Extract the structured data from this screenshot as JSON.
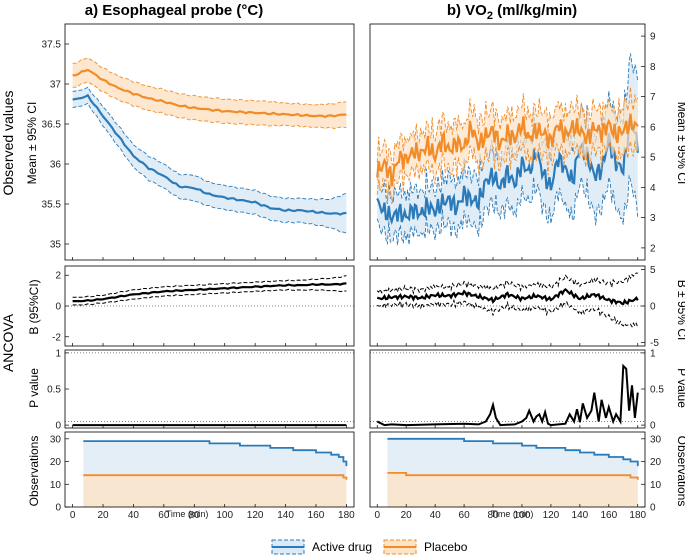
{
  "titles": {
    "left_prefix": "a) Esophageal probe (°C)",
    "right_prefix": "b) VO",
    "right_sub": "2",
    "right_suffix": " (ml/kg/min)"
  },
  "row_labels": {
    "observed": "Observed values",
    "ancova": "ANCOVA",
    "mean_ci": "Mean ± 95% CI",
    "b_ci_left": "B (95%CI)",
    "b_ci_right": "B ± 95% CI",
    "p_value": "P value",
    "observations": "Observations"
  },
  "x_axis_label": "Time (min)",
  "legend": {
    "active": "Active drug",
    "placebo": "Placebo"
  },
  "colors": {
    "active": "#2b7bba",
    "placebo": "#f28c28",
    "active_fill": "#dceaf5",
    "placebo_fill": "#fde3c6"
  },
  "chart_data": [
    {
      "type": "line",
      "panel": "a-observed",
      "x": [
        0,
        10,
        20,
        30,
        40,
        50,
        60,
        70,
        80,
        90,
        100,
        110,
        120,
        130,
        140,
        150,
        160,
        170,
        180
      ],
      "series": [
        {
          "name": "Active drug",
          "mean": [
            36.8,
            36.85,
            36.6,
            36.35,
            36.1,
            35.95,
            35.85,
            35.72,
            35.7,
            35.62,
            35.58,
            35.55,
            35.52,
            35.45,
            35.42,
            35.42,
            35.4,
            35.38,
            35.38
          ],
          "ci_half": [
            0.1,
            0.1,
            0.12,
            0.13,
            0.14,
            0.15,
            0.15,
            0.15,
            0.16,
            0.15,
            0.15,
            0.15,
            0.15,
            0.15,
            0.15,
            0.15,
            0.16,
            0.18,
            0.25
          ]
        },
        {
          "name": "Placebo",
          "mean": [
            37.1,
            37.18,
            37.05,
            36.95,
            36.88,
            36.82,
            36.78,
            36.73,
            36.7,
            36.68,
            36.66,
            36.65,
            36.64,
            36.63,
            36.62,
            36.61,
            36.6,
            36.6,
            36.62
          ],
          "ci_half": [
            0.15,
            0.15,
            0.15,
            0.15,
            0.15,
            0.15,
            0.15,
            0.15,
            0.15,
            0.15,
            0.15,
            0.15,
            0.15,
            0.15,
            0.14,
            0.14,
            0.14,
            0.15,
            0.16
          ]
        }
      ],
      "xlim": [
        -5,
        185
      ],
      "ylim": [
        34.8,
        37.75
      ],
      "yticks": [
        35,
        35.5,
        36,
        36.5,
        37,
        37.5
      ]
    },
    {
      "type": "line",
      "panel": "b-observed",
      "x": [
        0,
        5,
        10,
        15,
        20,
        25,
        30,
        35,
        40,
        45,
        50,
        55,
        60,
        65,
        70,
        75,
        80,
        85,
        90,
        95,
        100,
        105,
        110,
        115,
        120,
        125,
        130,
        135,
        140,
        145,
        150,
        155,
        160,
        165,
        170,
        175,
        180
      ],
      "series": [
        {
          "name": "Active drug",
          "mean": [
            3.5,
            3.2,
            3.0,
            3.2,
            3.0,
            3.3,
            3.1,
            3.4,
            3.2,
            3.5,
            3.6,
            3.3,
            3.8,
            3.6,
            3.5,
            4.2,
            4.4,
            4.0,
            4.5,
            4.1,
            4.8,
            4.5,
            5.2,
            4.4,
            4.0,
            5.0,
            4.6,
            4.2,
            5.4,
            5.0,
            4.4,
            4.6,
            5.6,
            4.8,
            4.6,
            6.3,
            5.4
          ],
          "ci_half": [
            0.7,
            0.7,
            0.7,
            0.7,
            0.7,
            0.7,
            0.7,
            0.7,
            0.7,
            0.7,
            0.8,
            0.8,
            0.8,
            0.8,
            0.9,
            0.9,
            0.9,
            0.9,
            1.0,
            1.0,
            1.0,
            1.0,
            1.1,
            1.1,
            1.1,
            1.1,
            1.2,
            1.2,
            1.2,
            1.2,
            1.3,
            1.3,
            1.4,
            1.5,
            1.7,
            2.0,
            2.2
          ]
        },
        {
          "name": "Placebo",
          "mean": [
            4.5,
            4.8,
            4.3,
            5.0,
            4.9,
            5.2,
            5.1,
            5.4,
            5.0,
            5.6,
            5.2,
            5.5,
            5.3,
            6.0,
            5.4,
            5.7,
            5.9,
            5.4,
            5.8,
            5.6,
            6.1,
            5.6,
            5.9,
            5.8,
            5.5,
            6.1,
            5.7,
            6.0,
            5.9,
            5.6,
            6.0,
            5.8,
            6.1,
            5.7,
            5.9,
            6.1,
            6.0
          ],
          "ci_half": [
            0.6,
            0.6,
            0.6,
            0.6,
            0.6,
            0.6,
            0.6,
            0.6,
            0.7,
            0.7,
            0.7,
            0.7,
            0.7,
            0.7,
            0.7,
            0.7,
            0.7,
            0.7,
            0.7,
            0.7,
            0.7,
            0.7,
            0.7,
            0.7,
            0.7,
            0.7,
            0.7,
            0.7,
            0.7,
            0.7,
            0.7,
            0.7,
            0.7,
            0.7,
            0.8,
            0.8,
            0.8
          ]
        }
      ],
      "xlim": [
        -5,
        185
      ],
      "ylim": [
        1.6,
        9.4
      ],
      "yticks": [
        2,
        3,
        4,
        5,
        6,
        7,
        8,
        9
      ]
    },
    {
      "type": "line",
      "panel": "a-ancova-B",
      "x": [
        0,
        10,
        20,
        30,
        40,
        50,
        60,
        70,
        80,
        90,
        100,
        110,
        120,
        130,
        140,
        150,
        160,
        170,
        180
      ],
      "values": [
        0.3,
        0.35,
        0.45,
        0.6,
        0.75,
        0.85,
        0.95,
        1.0,
        1.05,
        1.1,
        1.15,
        1.2,
        1.25,
        1.3,
        1.35,
        1.35,
        1.4,
        1.4,
        1.45
      ],
      "ci_half": [
        0.25,
        0.25,
        0.25,
        0.28,
        0.3,
        0.3,
        0.3,
        0.3,
        0.3,
        0.3,
        0.3,
        0.3,
        0.3,
        0.3,
        0.3,
        0.32,
        0.35,
        0.4,
        0.5
      ],
      "xlim": [
        -5,
        185
      ],
      "ylim": [
        -2.6,
        2.6
      ],
      "yticks": [
        -2,
        0,
        2
      ]
    },
    {
      "type": "line",
      "panel": "b-ancova-B",
      "x": [
        0,
        10,
        20,
        30,
        40,
        50,
        60,
        70,
        80,
        90,
        100,
        110,
        120,
        130,
        140,
        150,
        160,
        170,
        180
      ],
      "values": [
        1.0,
        1.2,
        1.3,
        1.1,
        1.5,
        1.4,
        1.8,
        1.3,
        0.8,
        1.6,
        1.0,
        1.4,
        0.9,
        2.2,
        1.0,
        1.6,
        0.8,
        0.4,
        1.0
      ],
      "ci_half": [
        1.0,
        1.0,
        1.1,
        1.1,
        1.2,
        1.2,
        1.3,
        1.4,
        1.6,
        1.6,
        1.6,
        1.6,
        1.7,
        1.8,
        1.9,
        2.0,
        2.3,
        3.0,
        3.6
      ],
      "xlim": [
        -5,
        185
      ],
      "ylim": [
        -5.5,
        5.5
      ],
      "yticks": [
        -5,
        0,
        5
      ]
    },
    {
      "type": "line",
      "panel": "a-pvalue",
      "x": [
        0,
        180
      ],
      "values": [
        0.0,
        0.0
      ],
      "threshold": 0.05,
      "xlim": [
        -5,
        185
      ],
      "ylim": [
        -0.04,
        1.04
      ],
      "yticks": [
        0,
        0.5,
        1
      ]
    },
    {
      "type": "line",
      "panel": "b-pvalue",
      "x": [
        0,
        5,
        10,
        20,
        40,
        60,
        70,
        75,
        78,
        80,
        82,
        85,
        95,
        100,
        103,
        105,
        108,
        110,
        112,
        114,
        116,
        118,
        120,
        130,
        133,
        136,
        138,
        140,
        142,
        145,
        148,
        150,
        153,
        155,
        158,
        160,
        163,
        165,
        168,
        170,
        172,
        174,
        176,
        178,
        180
      ],
      "values": [
        0.05,
        0.0,
        0.01,
        0.0,
        0.01,
        0.02,
        0.01,
        0.05,
        0.15,
        0.28,
        0.1,
        0.0,
        0.01,
        0.05,
        0.1,
        0.2,
        0.05,
        0.12,
        0.15,
        0.05,
        0.18,
        0.02,
        0.0,
        0.02,
        0.15,
        0.05,
        0.22,
        0.04,
        0.3,
        0.1,
        0.2,
        0.45,
        0.05,
        0.35,
        0.1,
        0.25,
        0.05,
        0.15,
        0.05,
        0.82,
        0.78,
        0.2,
        0.55,
        0.1,
        0.45
      ],
      "threshold": 0.05,
      "xlim": [
        -5,
        185
      ],
      "ylim": [
        -0.04,
        1.04
      ],
      "yticks": [
        0,
        0.5,
        1
      ]
    },
    {
      "type": "area",
      "panel": "a-observations",
      "active": {
        "x": [
          7,
          60,
          90,
          110,
          130,
          145,
          160,
          170,
          175,
          178,
          180
        ],
        "y": [
          29,
          29,
          28,
          27,
          26,
          25,
          24,
          23,
          22,
          20,
          18
        ]
      },
      "placebo": {
        "x": [
          7,
          175,
          178,
          180
        ],
        "y": [
          14,
          14,
          13,
          12
        ]
      },
      "xlim": [
        -5,
        185
      ],
      "ylim": [
        0,
        33
      ],
      "yticks": [
        0,
        10,
        20,
        30
      ],
      "xticks": [
        0,
        20,
        40,
        60,
        80,
        100,
        120,
        140,
        160,
        180
      ]
    },
    {
      "type": "area",
      "panel": "b-observations",
      "active": {
        "x": [
          7,
          20,
          60,
          80,
          100,
          110,
          120,
          130,
          140,
          150,
          160,
          170,
          175,
          180
        ],
        "y": [
          30,
          30,
          29,
          28,
          27,
          26,
          26,
          25,
          24,
          23,
          22,
          21,
          20,
          18
        ]
      },
      "placebo": {
        "x": [
          7,
          10,
          20,
          60,
          100,
          150,
          175,
          180
        ],
        "y": [
          15,
          15,
          14,
          14,
          14,
          14,
          13,
          12
        ]
      },
      "xlim": [
        -5,
        185
      ],
      "ylim": [
        0,
        33
      ],
      "yticks": [
        0,
        10,
        20,
        30
      ],
      "xticks": [
        0,
        20,
        40,
        60,
        80,
        100,
        120,
        140,
        160,
        180
      ]
    }
  ]
}
